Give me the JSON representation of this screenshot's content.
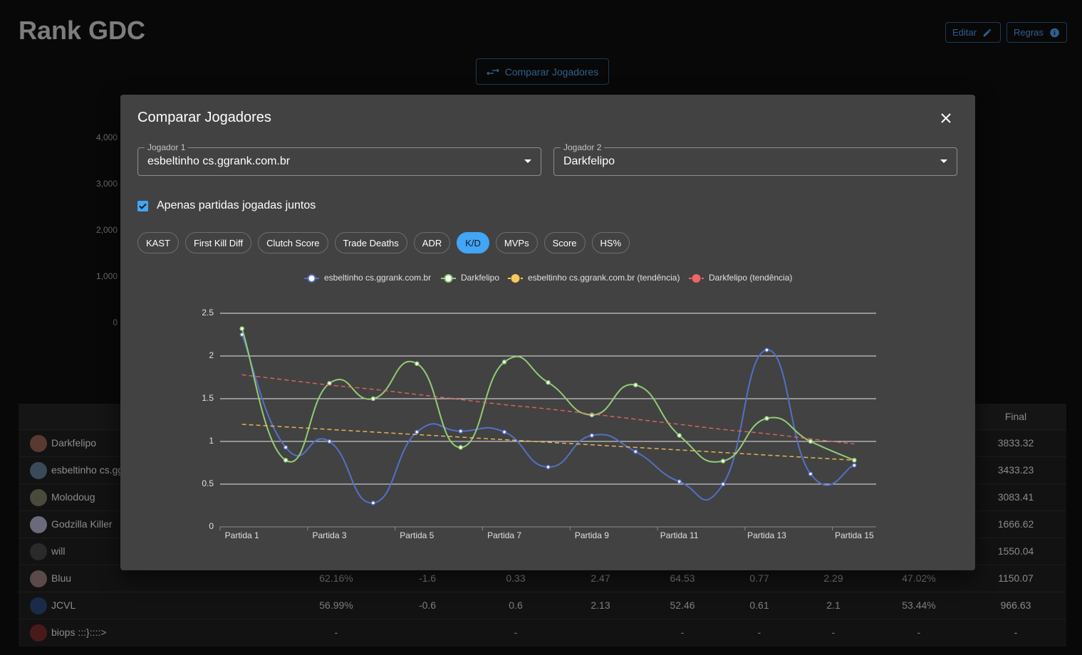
{
  "header": {
    "title": "Rank GDC",
    "edit_button": "Editar",
    "rules_button": "Regras",
    "compare_button": "Comparar Jogadores"
  },
  "background_chart": {
    "type": "bar",
    "ylim": [
      0,
      4000
    ],
    "yticks": [
      0,
      {
        "value": 1000,
        "label": "1,000"
      },
      {
        "value": 2000,
        "label": "2,000"
      },
      {
        "value": 3000,
        "label": "3,000"
      },
      {
        "value": 4000,
        "label": "4,000"
      }
    ]
  },
  "table": {
    "final_header": "Final",
    "rows": [
      {
        "name": "Darkfelipo",
        "cells": [
          null,
          null,
          null,
          null,
          null,
          null,
          null,
          null,
          "3833.32"
        ]
      },
      {
        "name": "esbeltinho cs.ggrank.com.br",
        "cells": [
          null,
          null,
          null,
          null,
          null,
          null,
          null,
          null,
          "3433.23"
        ]
      },
      {
        "name": "Molodoug",
        "cells": [
          null,
          null,
          null,
          null,
          null,
          null,
          null,
          null,
          "3083.41"
        ]
      },
      {
        "name": "Godzilla Killer",
        "cells": [
          null,
          null,
          null,
          null,
          null,
          null,
          null,
          null,
          "1666.62"
        ]
      },
      {
        "name": "will",
        "cells": [
          null,
          null,
          null,
          null,
          null,
          null,
          null,
          null,
          "1550.04"
        ]
      },
      {
        "name": "Bluu",
        "cells": [
          "62.16%",
          "-1.6",
          "0.33",
          "2.47",
          "64.53",
          "0.77",
          "2.29",
          "47.02%",
          "1150.07"
        ]
      },
      {
        "name": "JCVL",
        "cells": [
          "56.99%",
          "-0.6",
          "0.6",
          "2.13",
          "52.46",
          "0.61",
          "2.1",
          "53.44%",
          "966.63"
        ]
      },
      {
        "name": "biops :::}::::>",
        "cells": [
          "-",
          null,
          "-",
          null,
          "-",
          "-",
          "-",
          "-",
          "-"
        ]
      }
    ]
  },
  "modal": {
    "title": "Comparar Jogadores",
    "player1": {
      "label": "Jogador 1",
      "value": "esbeltinho cs.ggrank.com.br"
    },
    "player2": {
      "label": "Jogador 2",
      "value": "Darkfelipo"
    },
    "checkbox": "Apenas partidas jogadas juntos",
    "metrics": [
      "KAST",
      "First Kill Diff",
      "Clutch Score",
      "Trade Deaths",
      "ADR",
      "K/D",
      "MVPs",
      "Score",
      "HS%"
    ],
    "active_metric": 5
  },
  "chart_data": {
    "type": "line",
    "categories": [
      "Partida 1",
      null,
      "Partida 3",
      null,
      "Partida 5",
      null,
      "Partida 7",
      null,
      "Partida 9",
      null,
      "Partida 11",
      null,
      "Partida 13",
      null,
      "Partida 15"
    ],
    "series": [
      {
        "name": "esbeltinho cs.ggrank.com.br",
        "color": "#5470c6",
        "dashed": false,
        "values": [
          2.25,
          0.93,
          1.0,
          0.28,
          1.11,
          1.12,
          1.11,
          0.7,
          1.07,
          0.88,
          0.53,
          0.5,
          2.07,
          0.62,
          0.72
        ]
      },
      {
        "name": "Darkfelipo",
        "color": "#91cc75",
        "dashed": false,
        "values": [
          2.32,
          0.78,
          1.68,
          1.5,
          1.91,
          0.93,
          1.93,
          1.69,
          1.31,
          1.66,
          1.07,
          0.77,
          1.27,
          1.0,
          0.78
        ]
      },
      {
        "name": "esbeltinho cs.ggrank.com.br (tendência)",
        "color": "#fac858",
        "dashed": true,
        "values": [
          1.2,
          1.17,
          1.14,
          1.11,
          1.08,
          1.05,
          1.02,
          0.99,
          0.96,
          0.93,
          0.9,
          0.87,
          0.84,
          0.81,
          0.78
        ]
      },
      {
        "name": "Darkfelipo (tendência)",
        "color": "#ee6666",
        "dashed": true,
        "values": [
          1.78,
          1.72,
          1.66,
          1.61,
          1.55,
          1.49,
          1.43,
          1.38,
          1.32,
          1.26,
          1.2,
          1.14,
          1.09,
          1.03,
          0.97
        ]
      }
    ],
    "ylim": [
      0,
      2.5
    ],
    "yticks": [
      0,
      0.5,
      1,
      1.5,
      2,
      2.5
    ],
    "grid": true,
    "legend": "top"
  }
}
